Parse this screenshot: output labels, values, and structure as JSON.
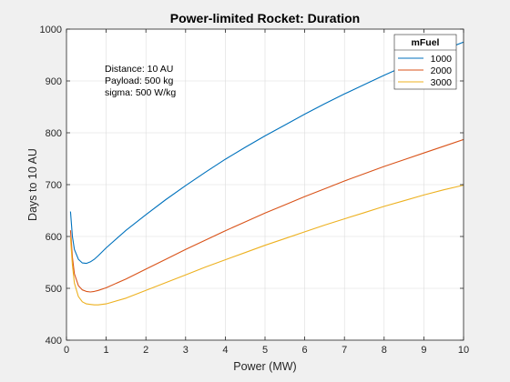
{
  "chart_data": {
    "type": "line",
    "title": "Power-limited Rocket: Duration",
    "xlabel": "Power (MW)",
    "ylabel": "Days to 10 AU",
    "xlim": [
      0,
      10
    ],
    "ylim": [
      400,
      1000
    ],
    "xticks": [
      0,
      1,
      2,
      3,
      4,
      5,
      6,
      7,
      8,
      9,
      10
    ],
    "yticks": [
      400,
      500,
      600,
      700,
      800,
      900,
      1000
    ],
    "grid": true,
    "annotation": [
      "Distance: 10 AU",
      "Payload: 500 kg",
      "sigma: 500 W/kg"
    ],
    "legend": {
      "title": "mFuel",
      "placement": "top-right"
    },
    "series": [
      {
        "name": "1000",
        "color": "#0072BD",
        "x": [
          0.1,
          0.15,
          0.2,
          0.3,
          0.4,
          0.5,
          0.6,
          0.7,
          0.8,
          1.0,
          1.5,
          2,
          2.5,
          3,
          3.5,
          4,
          4.5,
          5,
          5.5,
          6,
          6.5,
          7,
          7.5,
          8,
          8.5,
          9,
          9.5,
          10
        ],
        "y": [
          648,
          600,
          575,
          556,
          549,
          548,
          551,
          556,
          563,
          578,
          612,
          642,
          671,
          698,
          724,
          749,
          772,
          794,
          815,
          836,
          856,
          875,
          893,
          911,
          928,
          945,
          960,
          975
        ]
      },
      {
        "name": "2000",
        "color": "#D95319",
        "x": [
          0.1,
          0.15,
          0.2,
          0.3,
          0.4,
          0.5,
          0.6,
          0.7,
          0.8,
          1.0,
          1.5,
          2,
          2.5,
          3,
          3.5,
          4,
          4.5,
          5,
          5.5,
          6,
          6.5,
          7,
          7.5,
          8,
          8.5,
          9,
          9.5,
          10
        ],
        "y": [
          612,
          560,
          528,
          505,
          497,
          494,
          493,
          494,
          496,
          501,
          518,
          537,
          556,
          575,
          593,
          611,
          628,
          645,
          661,
          677,
          692,
          707,
          721,
          735,
          748,
          761,
          774,
          787
        ]
      },
      {
        "name": "3000",
        "color": "#EDB120",
        "x": [
          0.1,
          0.15,
          0.2,
          0.3,
          0.4,
          0.5,
          0.6,
          0.7,
          0.8,
          1.0,
          1.5,
          2,
          2.5,
          3,
          3.5,
          4,
          4.5,
          5,
          5.5,
          6,
          6.5,
          7,
          7.5,
          8,
          8.5,
          9,
          9.5,
          10
        ],
        "y": [
          598,
          545,
          510,
          484,
          474,
          470,
          469,
          468,
          468,
          470,
          481,
          496,
          511,
          526,
          541,
          555,
          569,
          583,
          596,
          609,
          622,
          634,
          646,
          658,
          669,
          680,
          690,
          699
        ]
      }
    ]
  }
}
